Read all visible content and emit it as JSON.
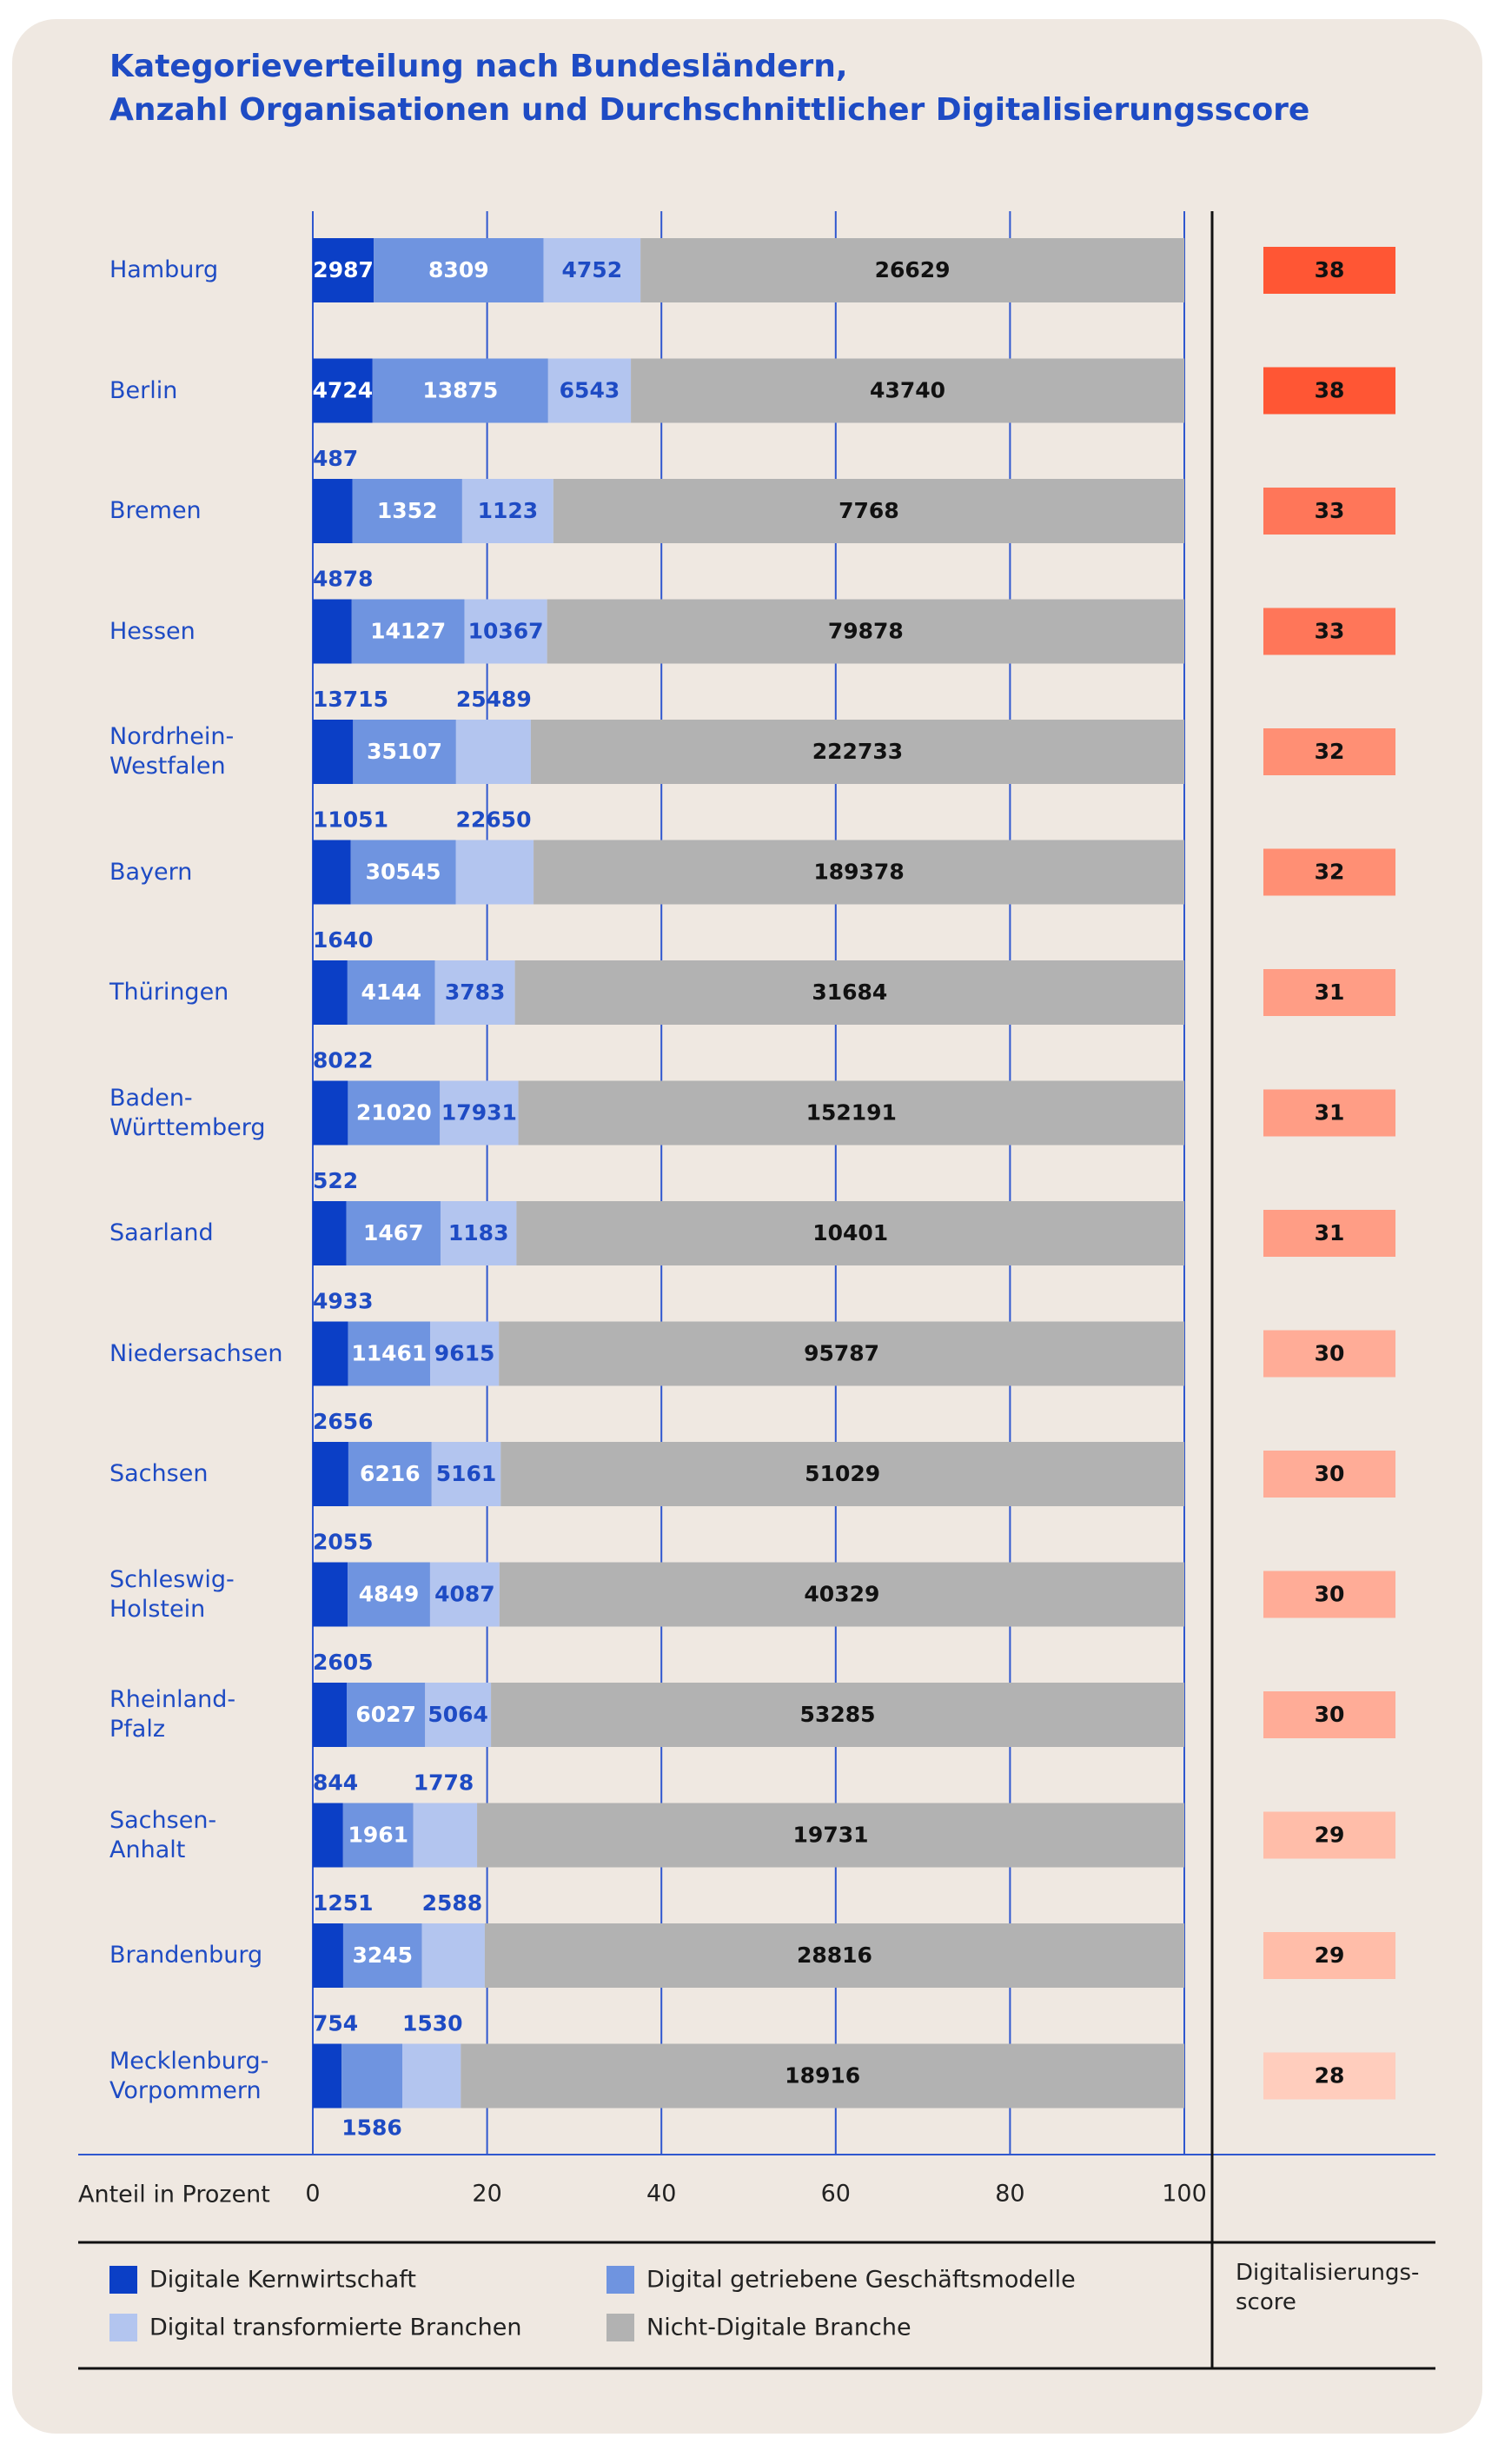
{
  "chart_data": {
    "type": "bar",
    "orientation": "horizontal",
    "stacked_percent": true,
    "title": "Kategorieverteilung nach Bundesländern,\nAnzahl Organisationen und Durchschnittlicher Digitalisierungsscore",
    "xlabel": "Anteil in Prozent",
    "xlim": [
      0,
      100
    ],
    "xticks": [
      0,
      20,
      40,
      60,
      80,
      100
    ],
    "grid": true,
    "categories": [
      "Hamburg",
      "Berlin",
      "Bremen",
      "Hessen",
      "Nordrhein-\nWestfalen",
      "Bayern",
      "Thüringen",
      "Baden-\nWürttemberg",
      "Saarland",
      "Niedersachsen",
      "Sachsen",
      "Schleswig-\nHolstein",
      "Rheinland-\nPfalz",
      "Sachsen-\nAnhalt",
      "Brandenburg",
      "Mecklenburg-\nVorpommern"
    ],
    "series": [
      {
        "name": "Digitale Kernwirtschaft",
        "color": "#0b3fc6",
        "values": [
          2987,
          4724,
          487,
          4878,
          13715,
          11051,
          1640,
          8022,
          522,
          4933,
          2656,
          2055,
          2605,
          844,
          1251,
          754
        ]
      },
      {
        "name": "Digital getriebene Geschäftsmodelle",
        "color": "#6f94e0",
        "values": [
          8309,
          13875,
          1352,
          14127,
          35107,
          30545,
          4144,
          21020,
          1467,
          11461,
          6216,
          4849,
          6027,
          1961,
          3245,
          1586
        ]
      },
      {
        "name": "Digital transformierte Branchen",
        "color": "#b3c5ef",
        "values": [
          4752,
          6543,
          1123,
          10367,
          25489,
          22650,
          3783,
          17931,
          1183,
          9615,
          5161,
          4087,
          5064,
          1778,
          2588,
          1530
        ]
      },
      {
        "name": "Nicht-Digitale Branche",
        "color": "#b2b2b2",
        "values": [
          26629,
          43740,
          7768,
          79878,
          222733,
          189378,
          31684,
          152191,
          10401,
          95787,
          51029,
          40329,
          53285,
          19731,
          28816,
          18916
        ]
      }
    ],
    "scores": {
      "name": "Digitalisierungs-\nscore",
      "values": [
        38,
        38,
        33,
        33,
        32,
        32,
        31,
        31,
        31,
        30,
        30,
        30,
        30,
        29,
        29,
        28
      ],
      "colors": [
        "#ff5634",
        "#ff5634",
        "#ff7659",
        "#ff7659",
        "#ff8f74",
        "#ff8f74",
        "#ff9d85",
        "#ff9d85",
        "#ff9d85",
        "#ffac97",
        "#ffac97",
        "#ffac97",
        "#ffac97",
        "#ffbda9",
        "#ffbda9",
        "#ffcdbd"
      ]
    }
  }
}
